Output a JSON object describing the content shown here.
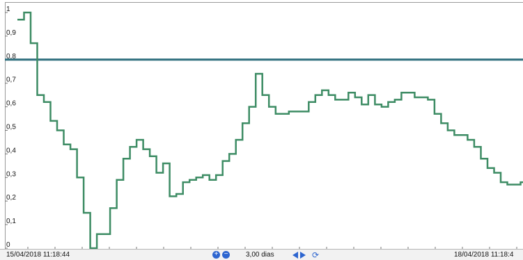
{
  "header": {
    "title": ""
  },
  "chart_data": {
    "type": "line",
    "ylim": [
      0,
      1.0
    ],
    "yticks": [
      "0",
      "0,1",
      "0,2",
      "0,3",
      "0,4",
      "0,5",
      "0,6",
      "0,7",
      "0,8",
      "0,9",
      "1"
    ],
    "threshold": 0.8,
    "line_style": "step",
    "series": [
      {
        "values": [
          0.97,
          1.0,
          0.87,
          0.65,
          0.62,
          0.54,
          0.5,
          0.44,
          0.42,
          0.3,
          0.15,
          0.0,
          0.06,
          0.06,
          0.17,
          0.29,
          0.38,
          0.43,
          0.46,
          0.42,
          0.39,
          0.32,
          0.36,
          0.22,
          0.23,
          0.28,
          0.29,
          0.3,
          0.31,
          0.29,
          0.31,
          0.37,
          0.4,
          0.46,
          0.53,
          0.6,
          0.74,
          0.65,
          0.6,
          0.57,
          0.57,
          0.58,
          0.58,
          0.58,
          0.62,
          0.65,
          0.67,
          0.65,
          0.63,
          0.63,
          0.66,
          0.64,
          0.61,
          0.65,
          0.61,
          0.6,
          0.62,
          0.63,
          0.66,
          0.66,
          0.64,
          0.64,
          0.63,
          0.57,
          0.53,
          0.5,
          0.48,
          0.48,
          0.46,
          0.43,
          0.38,
          0.34,
          0.32,
          0.28,
          0.27,
          0.27,
          0.28
        ]
      }
    ],
    "series_color": "#3d8c64",
    "threshold_color": "#2f6f7e",
    "grid": false
  },
  "footer": {
    "start_date": "15/04/2018 11:18:44",
    "end_date": "18/04/2018 11:18:4",
    "period": "3,00 dias",
    "zoom_in_icon": "zoom-in-icon",
    "zoom_out_icon": "zoom-out-icon",
    "prev_icon": "previous-icon",
    "next_icon": "next-icon",
    "refresh_icon": "refresh-icon"
  }
}
